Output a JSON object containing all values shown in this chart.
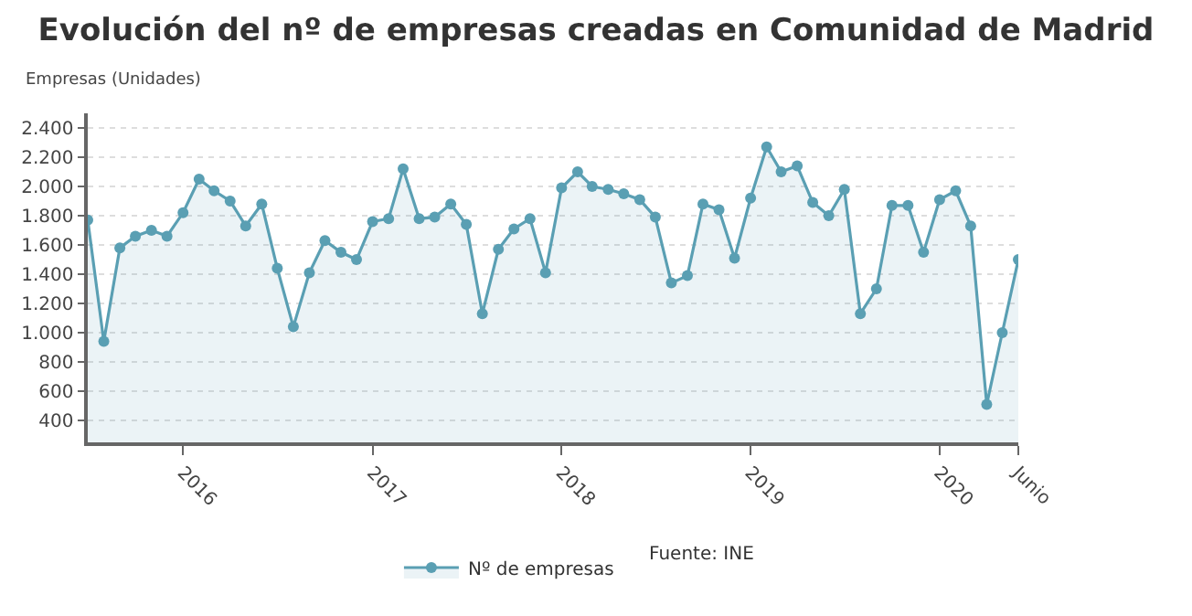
{
  "chart_data": {
    "type": "area",
    "title": "Evolución del nº de empresas creadas en Comunidad de Madrid",
    "ylabel": "Empresas (Unidades)",
    "x": [
      "2015-07",
      "2015-08",
      "2015-09",
      "2015-10",
      "2015-11",
      "2015-12",
      "2016-01",
      "2016-02",
      "2016-03",
      "2016-04",
      "2016-05",
      "2016-06",
      "2016-07",
      "2016-08",
      "2016-09",
      "2016-10",
      "2016-11",
      "2016-12",
      "2017-01",
      "2017-02",
      "2017-03",
      "2017-04",
      "2017-05",
      "2017-06",
      "2017-07",
      "2017-08",
      "2017-09",
      "2017-10",
      "2017-11",
      "2017-12",
      "2018-01",
      "2018-02",
      "2018-03",
      "2018-04",
      "2018-05",
      "2018-06",
      "2018-07",
      "2018-08",
      "2018-09",
      "2018-10",
      "2018-11",
      "2018-12",
      "2019-01",
      "2019-02",
      "2019-03",
      "2019-04",
      "2019-05",
      "2019-06",
      "2019-07",
      "2019-08",
      "2019-09",
      "2019-10",
      "2019-11",
      "2019-12",
      "2020-01",
      "2020-02",
      "2020-03",
      "2020-04",
      "2020-05",
      "2020-06"
    ],
    "series": [
      {
        "name": "Nº de empresas",
        "color": "#5a9fb3",
        "values": [
          1770,
          940,
          1580,
          1660,
          1700,
          1660,
          1820,
          2050,
          1970,
          1900,
          1730,
          1880,
          1440,
          1040,
          1410,
          1630,
          1550,
          1500,
          1760,
          1780,
          2120,
          1780,
          1790,
          1880,
          1740,
          1130,
          1570,
          1710,
          1780,
          1410,
          1990,
          2100,
          2000,
          1980,
          1950,
          1910,
          1790,
          1340,
          1390,
          1880,
          1840,
          1510,
          1920,
          2270,
          2100,
          2140,
          1890,
          1800,
          1980,
          1130,
          1300,
          1870,
          1870,
          1550,
          1910,
          1970,
          1730,
          510,
          1000,
          1500
        ]
      }
    ],
    "xlim": [
      "2015-07",
      "2020-06"
    ],
    "xticks": [
      {
        "value": "2016-01",
        "label": "2016"
      },
      {
        "value": "2017-01",
        "label": "2017"
      },
      {
        "value": "2018-01",
        "label": "2018"
      },
      {
        "value": "2019-01",
        "label": "2019"
      },
      {
        "value": "2020-01",
        "label": "2020"
      },
      {
        "value": "2020-06",
        "label": "Junio"
      }
    ],
    "ylim": [
      250,
      2500
    ],
    "yticks": [
      400,
      600,
      800,
      {
        "value": 1000,
        "label": "1.000"
      },
      {
        "value": 1200,
        "label": "1.200"
      },
      {
        "value": 1400,
        "label": "1.400"
      },
      {
        "value": 1600,
        "label": "1.600"
      },
      {
        "value": 1800,
        "label": "1.800"
      },
      {
        "value": 2000,
        "label": "2.000"
      },
      {
        "value": 2200,
        "label": "2.200"
      },
      {
        "value": 2400,
        "label": "2.400"
      }
    ],
    "grid": "y",
    "legend": "bottom",
    "marker": "circle",
    "line_style": "solid",
    "annotations": [
      "Fuente: INE"
    ]
  }
}
